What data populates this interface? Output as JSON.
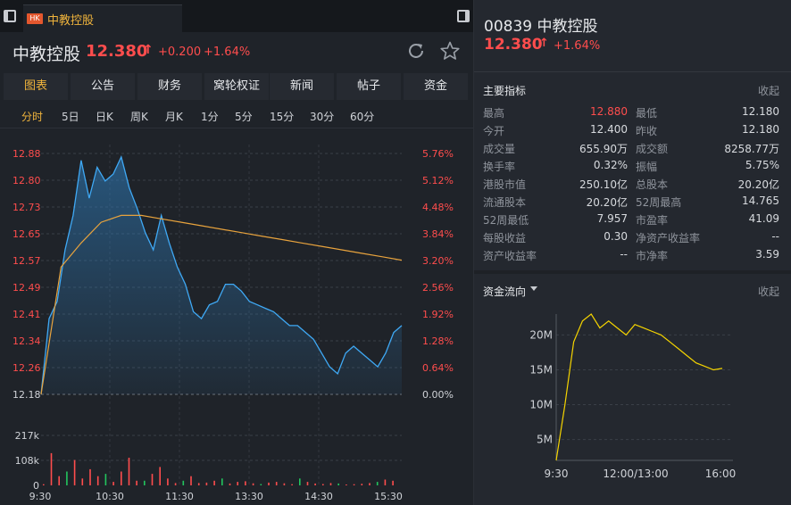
{
  "tab": {
    "flag": "HK",
    "label": "中教控股"
  },
  "header": {
    "name": "中教控股",
    "price": "12.380",
    "arrow": "↑",
    "change": "+0.200",
    "pct": "+1.64%"
  },
  "main_tabs": [
    "图表",
    "公告",
    "财务",
    "窝轮权证",
    "新闻",
    "帖子",
    "资金"
  ],
  "periods": [
    "分时",
    "5日",
    "日K",
    "周K",
    "月K",
    "1分",
    "5分",
    "15分",
    "30分",
    "60分"
  ],
  "colors": {
    "accent": "#f0b43c",
    "up": "#ff4d4d",
    "down": "#22c55e",
    "price_line": "#3fa9f5",
    "avg_line": "#e8a33d",
    "flow_line": "#f5d400"
  },
  "chart_data": [
    {
      "type": "line",
      "title": "",
      "ylim": [
        12.18,
        12.88
      ],
      "y_ticks_left": [
        "12.88",
        "12.80",
        "12.73",
        "12.65",
        "12.57",
        "12.49",
        "12.41",
        "12.34",
        "12.26",
        "12.18"
      ],
      "y_ticks_right": [
        "5.76%",
        "5.12%",
        "4.48%",
        "3.84%",
        "3.20%",
        "2.56%",
        "1.92%",
        "1.28%",
        "0.64%",
        "0.00%"
      ],
      "x_ticks": [
        "9:30",
        "10:30",
        "11:30",
        "13:30",
        "14:30",
        "15:30"
      ],
      "series": [
        {
          "values": [
            12.18,
            12.4,
            12.45,
            12.6,
            12.7,
            12.86,
            12.75,
            12.84,
            12.8,
            12.82,
            12.87,
            12.78,
            12.72,
            12.65,
            12.6,
            12.7,
            12.62,
            12.55,
            12.5,
            12.42,
            12.4,
            12.44,
            12.45,
            12.5,
            12.5,
            12.48,
            12.45,
            12.44,
            12.43,
            12.42,
            12.4,
            12.38,
            12.38,
            12.36,
            12.34,
            12.3,
            12.26,
            12.24,
            12.3,
            12.32,
            12.3,
            12.28,
            12.26,
            12.3,
            12.36,
            12.38
          ]
        },
        {
          "values": [
            12.18,
            12.55,
            12.62,
            12.68,
            12.7,
            12.7,
            12.69,
            12.68,
            12.67,
            12.66,
            12.65,
            12.64,
            12.63,
            12.62,
            12.61,
            12.6,
            12.59,
            12.58,
            12.57
          ]
        }
      ]
    },
    {
      "type": "bar",
      "y_ticks": [
        "217k",
        "108k",
        "0"
      ],
      "ylim": [
        0,
        217000
      ],
      "values": [
        5000,
        140000,
        40000,
        60000,
        110000,
        30000,
        70000,
        40000,
        50000,
        15000,
        60000,
        120000,
        20000,
        20000,
        50000,
        80000,
        30000,
        10000,
        20000,
        40000,
        10000,
        12000,
        20000,
        30000,
        8000,
        15000,
        18000,
        9000,
        6000,
        12000,
        15000,
        9000,
        5000,
        30000,
        15000,
        8000,
        6000,
        10000,
        8000,
        4000,
        5000,
        7000,
        10000,
        15000,
        25000,
        20000
      ]
    },
    {
      "type": "line",
      "title": "资金流向",
      "y_ticks": [
        "20M",
        "15M",
        "10M",
        "5M"
      ],
      "x_ticks": [
        "9:30",
        "12:00/13:00",
        "16:00"
      ],
      "ylim": [
        2,
        23
      ],
      "values": [
        2,
        10,
        19,
        22,
        23,
        21,
        22,
        21,
        20,
        21.5,
        21,
        20.5,
        20,
        19,
        18,
        17,
        16,
        15.5,
        15,
        15.2
      ]
    }
  ],
  "metrics": {
    "title": "主要指标",
    "collapse": "收起",
    "rows": [
      [
        "最高",
        "12.880",
        "最低",
        "12.180"
      ],
      [
        "今开",
        "12.400",
        "昨收",
        "12.180"
      ],
      [
        "成交量",
        "655.90万",
        "成交额",
        "8258.77万"
      ],
      [
        "换手率",
        "0.32%",
        "振幅",
        "5.75%"
      ],
      [
        "港股市值",
        "250.10亿",
        "总股本",
        "20.20亿"
      ],
      [
        "流通股本",
        "20.20亿",
        "52周最高",
        "14.765"
      ],
      [
        "52周最低",
        "7.957",
        "市盈率",
        "41.09"
      ],
      [
        "每股收益",
        "0.30",
        "净资产收益率",
        "--"
      ],
      [
        "资产收益率",
        "--",
        "市净率",
        "3.59"
      ]
    ]
  },
  "right_header": {
    "code": "00839 中教控股",
    "price": "12.380",
    "arrow": "↑",
    "pct": "+1.64%"
  },
  "flow": {
    "title": "资金流向",
    "collapse": "收起"
  }
}
